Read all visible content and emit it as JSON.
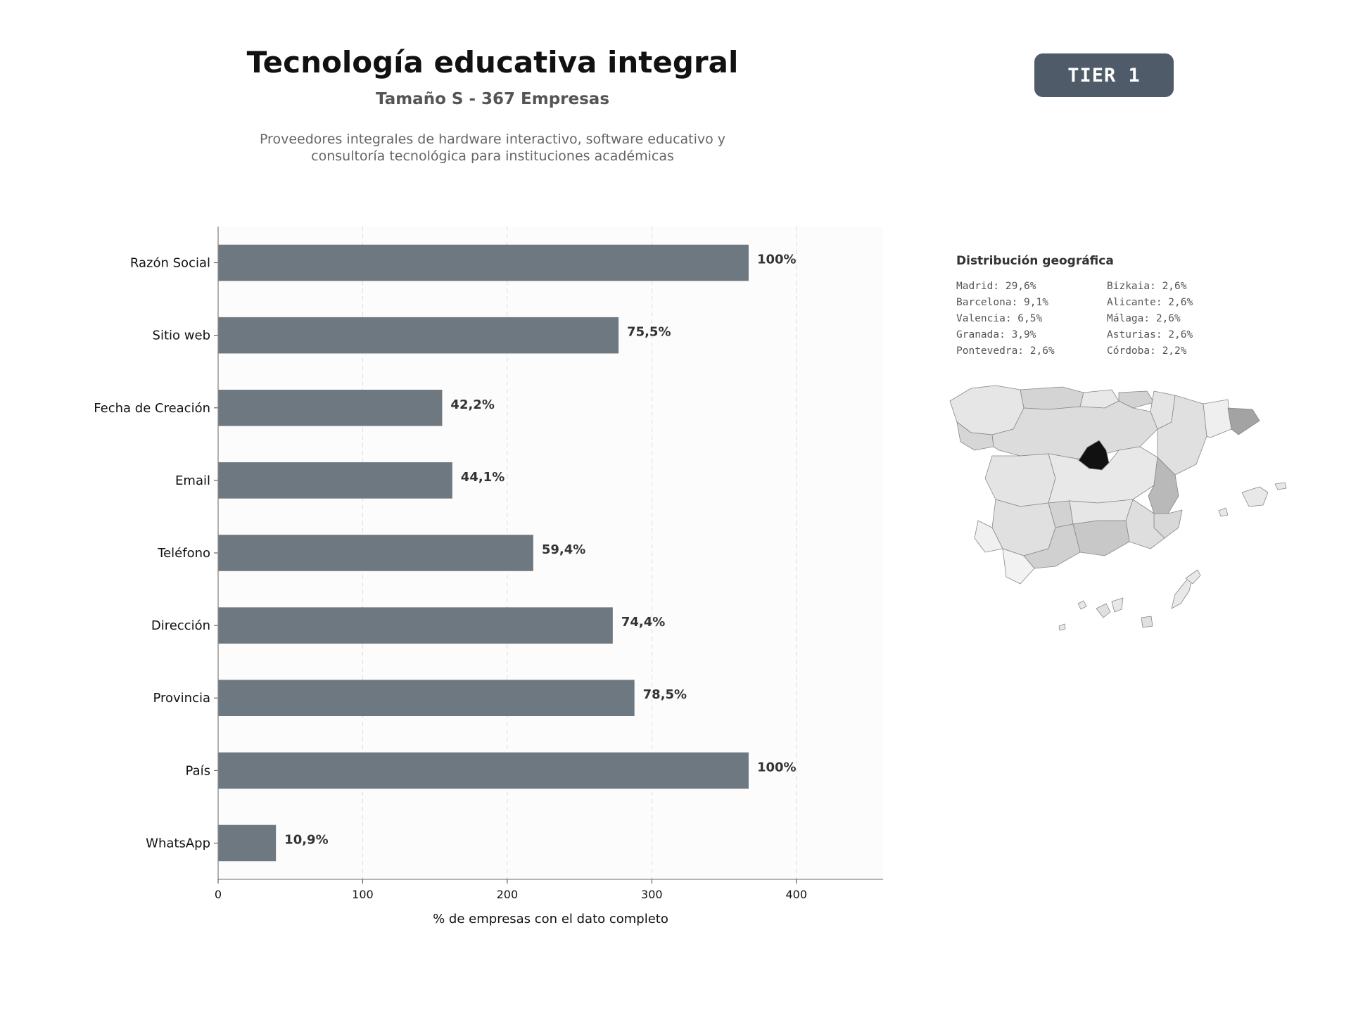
{
  "header": {
    "title": "Tecnología educativa integral",
    "subtitle": "Tamaño S - 367 Empresas",
    "description_line1": "Proveedores integrales de hardware interactivo, software educativo y",
    "description_line2": "consultoría tecnológica para instituciones académicas",
    "badge": "TIER 1"
  },
  "chart_data": {
    "type": "bar",
    "orientation": "horizontal",
    "categories": [
      "Razón Social",
      "Sitio web",
      "Fecha de Creación",
      "Email",
      "Teléfono",
      "Dirección",
      "Provincia",
      "País",
      "WhatsApp"
    ],
    "values": [
      367,
      277,
      155,
      162,
      218,
      273,
      288,
      367,
      40
    ],
    "data_labels": [
      "100%",
      "75,5%",
      "42,2%",
      "44,1%",
      "59,4%",
      "74,4%",
      "78,5%",
      "100%",
      "10,9%"
    ],
    "xlabel": "% de empresas con el dato completo",
    "xlim": [
      0,
      460
    ],
    "xticks": [
      0,
      100,
      200,
      300,
      400
    ],
    "grid": "vertical dashed",
    "bar_color": "#6e7881"
  },
  "geo": {
    "title": "Distribución geográfica",
    "entries": [
      "Madrid: 29,6%",
      "Bizkaia: 2,6%",
      "Barcelona: 9,1%",
      "Alicante: 2,6%",
      "Valencia: 6,5%",
      "Málaga: 2,6%",
      "Granada: 3,9%",
      "Asturias: 2,6%",
      "Pontevedra: 2,6%",
      "Córdoba: 2,2%"
    ]
  },
  "map": {
    "colors": {
      "madrid": "#111111",
      "barcelona": "#a3a3a3",
      "valencia": "#b9b9b9",
      "base": "#e2e2e2",
      "light": "#f1f1f1",
      "border": "#888888"
    }
  }
}
